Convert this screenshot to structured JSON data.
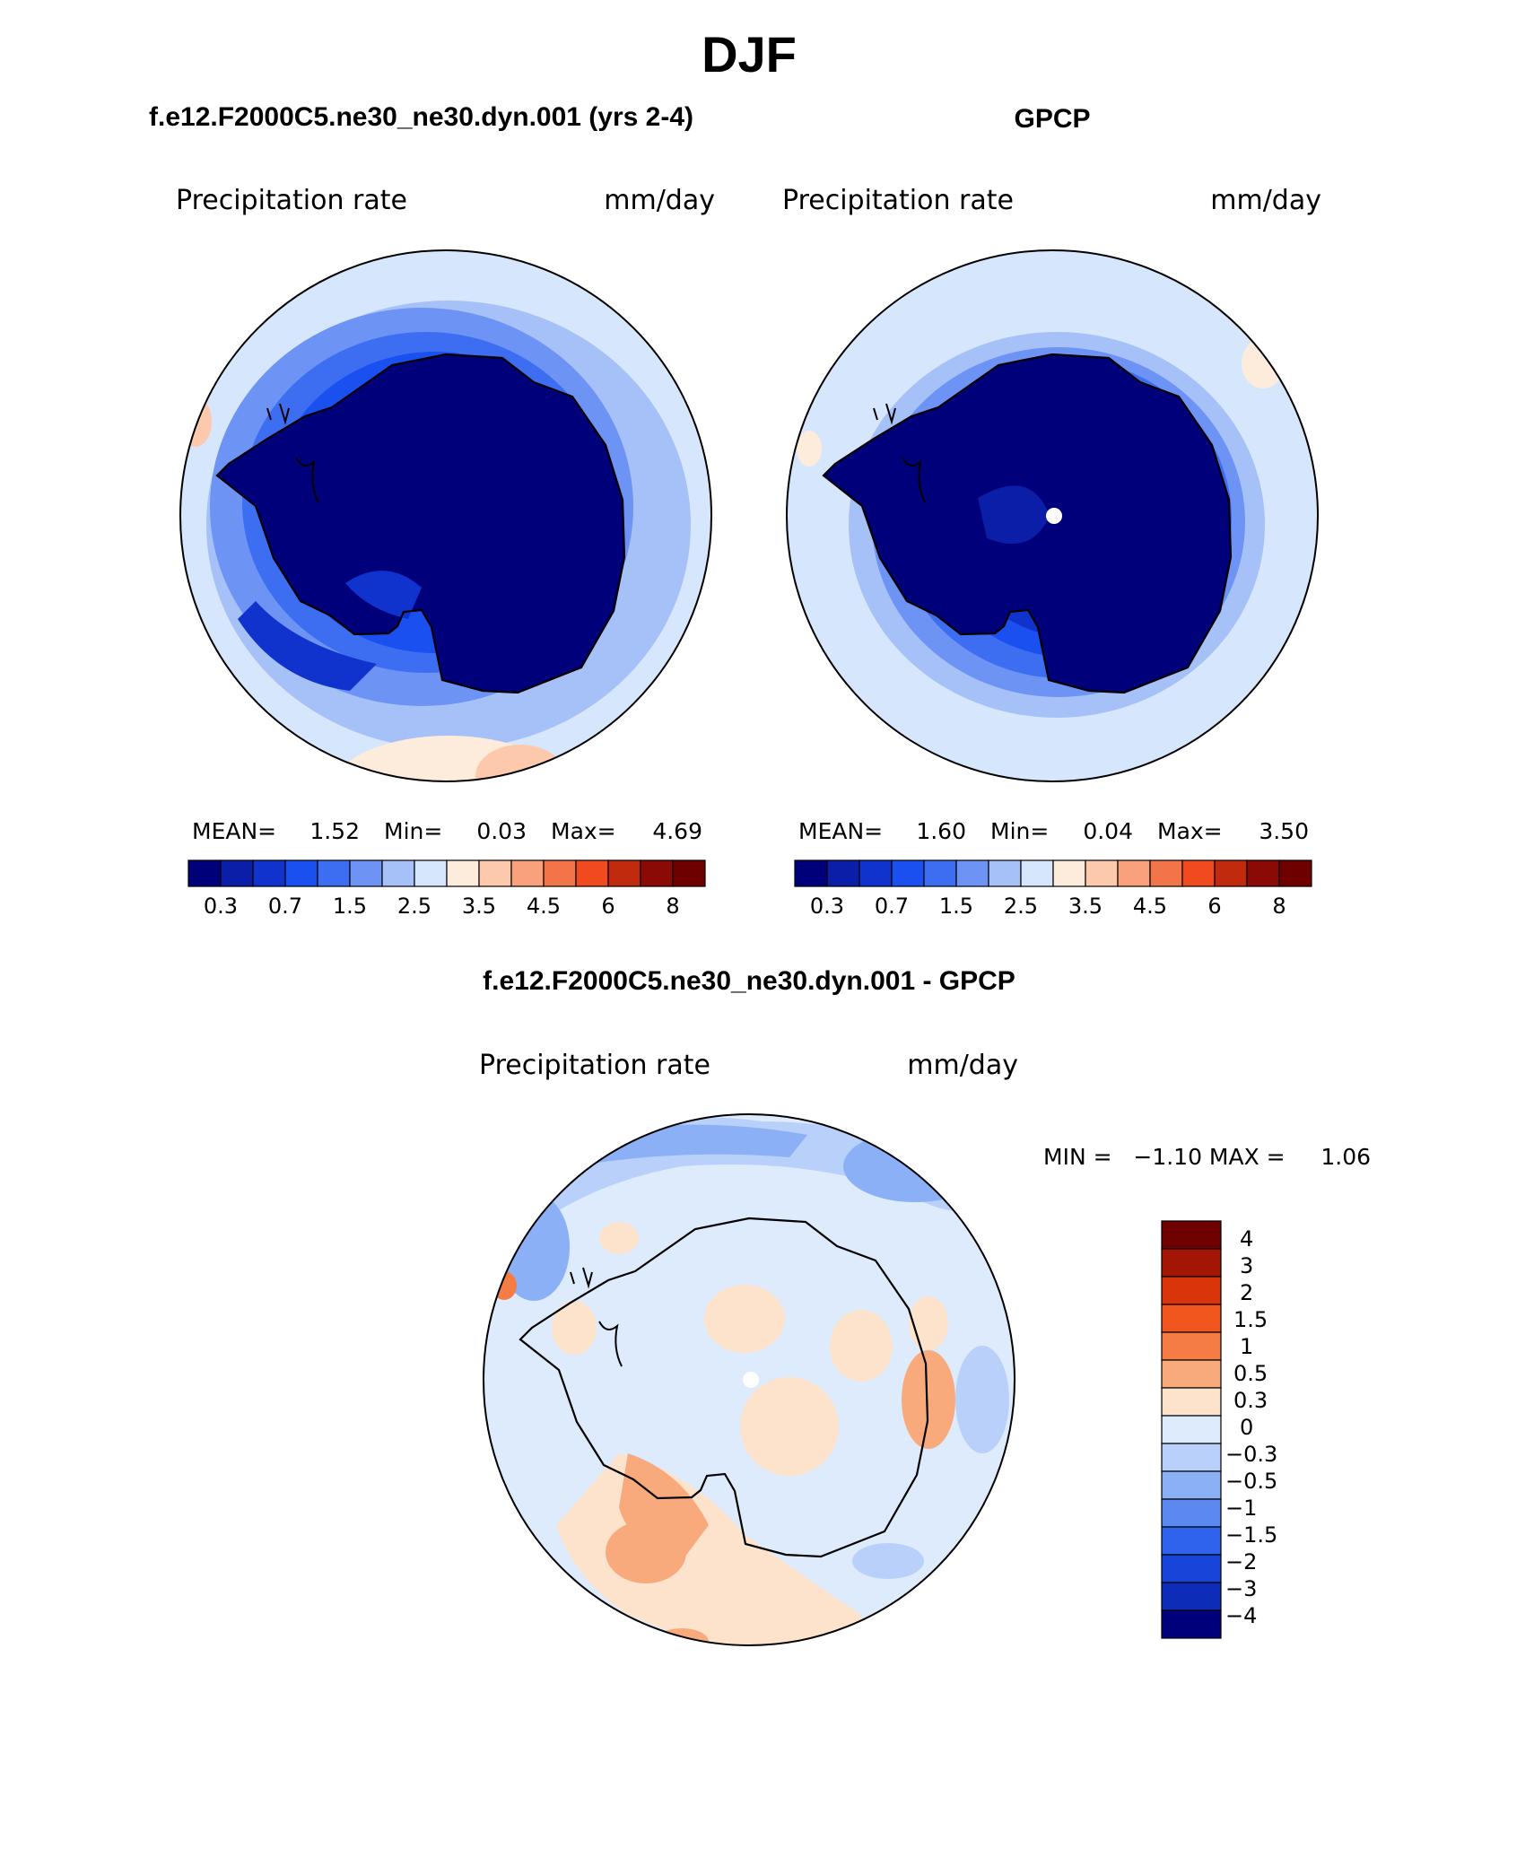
{
  "page_title": "DJF",
  "palettes": {
    "main": [
      "#00007a",
      "#0a1ea8",
      "#0f33cc",
      "#1a4ff0",
      "#3d6ef2",
      "#6d93f4",
      "#a6c1f7",
      "#d6e7fd",
      "#fdecdc",
      "#fcc9ad",
      "#f9a07c",
      "#f4744a",
      "#f04a1e",
      "#c12a0c",
      "#8c0a06",
      "#6e0000"
    ],
    "diff": [
      "#6e0000",
      "#a31606",
      "#d9340a",
      "#f0561e",
      "#f57d45",
      "#f9aa7d",
      "#fde3cc",
      "#ddebfd",
      "#b8d0fa",
      "#8bb0f5",
      "#5b88f1",
      "#2f63ee",
      "#1844d9",
      "#0d2cb8",
      "#00007a"
    ]
  },
  "maps": {
    "model": {
      "title": "f.e12.F2000C5.ne30_ne30.dyn.001 (yrs 2-4)",
      "variable": "Precipitation rate",
      "units": "mm/day",
      "stats": {
        "mean_label": "MEAN=",
        "mean": "1.52",
        "min_label": "Min=",
        "min": "0.03",
        "max_label": "Max=",
        "max": "4.69"
      },
      "colorbar_ticks": [
        "0.3",
        "0.7",
        "1.5",
        "2.5",
        "3.5",
        "4.5",
        "6",
        "8"
      ]
    },
    "obs": {
      "title": "GPCP",
      "variable": "Precipitation rate",
      "units": "mm/day",
      "stats": {
        "mean_label": "MEAN=",
        "mean": "1.60",
        "min_label": "Min=",
        "min": "0.04",
        "max_label": "Max=",
        "max": "3.50"
      },
      "colorbar_ticks": [
        "0.3",
        "0.7",
        "1.5",
        "2.5",
        "3.5",
        "4.5",
        "6",
        "8"
      ]
    },
    "diff": {
      "title": "f.e12.F2000C5.ne30_ne30.dyn.001 - GPCP",
      "variable": "Precipitation rate",
      "units": "mm/day",
      "minmax": "MIN =   −1.10 MAX =     1.06",
      "colorbar_labels": [
        "4",
        "3",
        "2",
        "1.5",
        "1",
        "0.5",
        "0.3",
        "0",
        "−0.3",
        "−0.5",
        "−1",
        "−1.5",
        "−2",
        "−3",
        "−4"
      ]
    }
  }
}
